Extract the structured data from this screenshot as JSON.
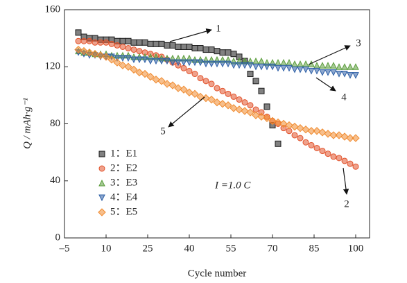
{
  "chart_data": {
    "type": "scatter",
    "xlabel": "Cycle number",
    "ylabel": "Q / mAh·g⁻¹",
    "xlim": [
      -5,
      105
    ],
    "xticks": [
      {
        "value": -5,
        "label": "–5"
      },
      10,
      25,
      40,
      55,
      70,
      85,
      100
    ],
    "ylim": [
      0,
      160
    ],
    "yticks": [
      0,
      40,
      80,
      120,
      160
    ],
    "x": [
      0,
      2,
      4,
      6,
      8,
      10,
      12,
      14,
      16,
      18,
      20,
      22,
      24,
      26,
      28,
      30,
      32,
      34,
      36,
      38,
      40,
      42,
      44,
      46,
      48,
      50,
      52,
      54,
      56,
      58,
      60,
      62,
      64,
      66,
      68,
      70,
      72,
      74,
      76,
      78,
      80,
      82,
      84,
      86,
      88,
      90,
      92,
      94,
      96,
      98,
      100
    ],
    "series": [
      {
        "name": "1：E1",
        "color": "#1a1a1a",
        "marker": "square",
        "values": [
          144,
          141,
          140,
          140,
          139,
          139,
          139,
          138,
          138,
          138,
          137,
          137,
          137,
          136,
          136,
          136,
          135,
          135,
          134,
          134,
          134,
          133,
          133,
          132,
          132,
          131,
          130,
          130,
          129,
          127,
          124,
          115,
          110,
          103,
          92,
          79,
          66,
          null,
          null,
          null,
          null,
          null,
          null,
          null,
          null,
          null,
          null,
          null,
          null,
          null,
          null
        ]
      },
      {
        "name": "2：E2",
        "color": "#e2532c",
        "marker": "circle",
        "values": [
          138,
          138,
          138,
          137,
          137,
          137,
          136,
          135,
          134,
          133,
          132,
          131,
          130,
          129,
          128,
          127,
          125,
          123,
          121,
          119,
          117,
          115,
          112,
          110,
          108,
          105,
          103,
          101,
          99,
          97,
          95,
          93,
          90,
          88,
          85,
          82,
          80,
          77,
          75,
          72,
          70,
          67,
          65,
          63,
          61,
          59,
          57,
          56,
          54,
          52,
          50
        ]
      },
      {
        "name": "3：E3",
        "color": "#5b9d3c",
        "marker": "triangle",
        "values": [
          131,
          130,
          130,
          129,
          129,
          129,
          128,
          128,
          128,
          128,
          127,
          127,
          127,
          127,
          127,
          126,
          126,
          126,
          126,
          126,
          126,
          125,
          125,
          125,
          125,
          125,
          125,
          125,
          124,
          124,
          124,
          124,
          124,
          124,
          123,
          123,
          123,
          123,
          123,
          122,
          122,
          122,
          122,
          121,
          121,
          121,
          121,
          120,
          120,
          120,
          120
        ]
      },
      {
        "name": "4：E4",
        "color": "#2d5fa6",
        "marker": "triangle-down",
        "values": [
          130,
          129,
          128,
          128,
          127,
          127,
          127,
          126,
          126,
          126,
          125,
          125,
          125,
          124,
          124,
          124,
          124,
          123,
          123,
          123,
          123,
          123,
          123,
          122,
          122,
          122,
          122,
          122,
          121,
          121,
          121,
          121,
          120,
          120,
          120,
          120,
          119,
          119,
          119,
          118,
          118,
          118,
          117,
          117,
          116,
          116,
          116,
          115,
          115,
          114,
          114
        ]
      },
      {
        "name": "5：E5",
        "color": "#f08a2e",
        "marker": "diamond",
        "values": [
          132,
          131,
          130,
          129,
          128,
          127,
          125,
          123,
          121,
          120,
          118,
          116,
          115,
          113,
          111,
          110,
          108,
          107,
          105,
          104,
          102,
          101,
          99,
          98,
          97,
          95,
          94,
          93,
          91,
          90,
          89,
          88,
          86,
          85,
          84,
          82,
          81,
          80,
          79,
          78,
          77,
          76,
          75,
          75,
          74,
          73,
          72,
          72,
          71,
          70,
          70
        ]
      }
    ],
    "annotations": [
      "1",
      "2",
      "3",
      "4",
      "5",
      "I =1.0 C"
    ]
  }
}
